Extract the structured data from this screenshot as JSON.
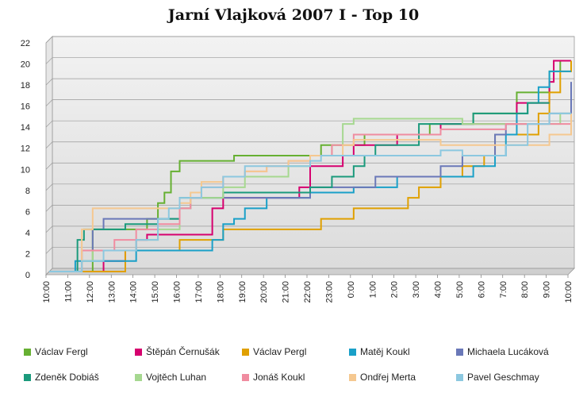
{
  "chart_data": {
    "type": "line",
    "title": "Jarní Vlajková 2007 I - Top 10",
    "xlabel": "",
    "ylabel": "",
    "x_ticks": [
      "10:00",
      "11:00",
      "12:00",
      "13:00",
      "14:00",
      "15:00",
      "16:00",
      "17:00",
      "18:00",
      "19:00",
      "20:00",
      "21:00",
      "22:00",
      "23:00",
      "0:00",
      "1:00",
      "2:00",
      "3:00",
      "4:00",
      "5:00",
      "6:00",
      "7:00",
      "8:00",
      "9:00",
      "10:00"
    ],
    "y_ticks": [
      "0",
      "2",
      "4",
      "6",
      "8",
      "10",
      "12",
      "14",
      "16",
      "18",
      "20",
      "22"
    ],
    "ylim": [
      0,
      22
    ],
    "grid": true,
    "legend_position": "bottom",
    "step": true,
    "series": [
      {
        "name": "Václav Fergl",
        "color": "#66b032",
        "points": [
          [
            0,
            0
          ],
          [
            2,
            4
          ],
          [
            3,
            4
          ],
          [
            4.5,
            5
          ],
          [
            5,
            6.5
          ],
          [
            5.3,
            7.5
          ],
          [
            5.6,
            9.5
          ],
          [
            6,
            10.5
          ],
          [
            8,
            10.5
          ],
          [
            8.5,
            11
          ],
          [
            12,
            11
          ],
          [
            12.5,
            12
          ],
          [
            14,
            12
          ],
          [
            14.5,
            13
          ],
          [
            17,
            13
          ],
          [
            17.5,
            14
          ],
          [
            19,
            14
          ],
          [
            19.5,
            15
          ],
          [
            21,
            15
          ],
          [
            21.5,
            17
          ],
          [
            22.5,
            17
          ],
          [
            23,
            19
          ],
          [
            23.5,
            20
          ],
          [
            24,
            20
          ]
        ]
      },
      {
        "name": "Štěpán Černušák",
        "color": "#d6006e",
        "points": [
          [
            0,
            0
          ],
          [
            2,
            0
          ],
          [
            2.5,
            1
          ],
          [
            3.5,
            2
          ],
          [
            4,
            3
          ],
          [
            4.5,
            3.5
          ],
          [
            7,
            3.5
          ],
          [
            7.5,
            6
          ],
          [
            8,
            7
          ],
          [
            11,
            7
          ],
          [
            11.5,
            8
          ],
          [
            12,
            10
          ],
          [
            13.5,
            11
          ],
          [
            14,
            12
          ],
          [
            15.5,
            12
          ],
          [
            16,
            13
          ],
          [
            18,
            14
          ],
          [
            21,
            14
          ],
          [
            21.5,
            16
          ],
          [
            22.5,
            16
          ],
          [
            23,
            18
          ],
          [
            23.2,
            20
          ],
          [
            24,
            20
          ]
        ]
      },
      {
        "name": "Václav Pergl",
        "color": "#e0a000",
        "points": [
          [
            0,
            0
          ],
          [
            3,
            0
          ],
          [
            3.5,
            2
          ],
          [
            5,
            2
          ],
          [
            6,
            3
          ],
          [
            8,
            4
          ],
          [
            12,
            4
          ],
          [
            12.5,
            5
          ],
          [
            13.5,
            5
          ],
          [
            14,
            6
          ],
          [
            16.5,
            7
          ],
          [
            17,
            8
          ],
          [
            18,
            9
          ],
          [
            19,
            10
          ],
          [
            20,
            11
          ],
          [
            20.5,
            13
          ],
          [
            22,
            13
          ],
          [
            22.5,
            15
          ],
          [
            23,
            17
          ],
          [
            23.5,
            19
          ],
          [
            24,
            20
          ]
        ]
      },
      {
        "name": "Matěj Koukl",
        "color": "#1aa0c8",
        "points": [
          [
            0,
            0
          ],
          [
            1,
            0
          ],
          [
            1.2,
            1
          ],
          [
            3,
            1
          ],
          [
            4,
            2
          ],
          [
            7,
            2
          ],
          [
            7.5,
            3
          ],
          [
            8,
            4.5
          ],
          [
            8.5,
            5
          ],
          [
            9,
            6
          ],
          [
            10,
            7
          ],
          [
            11.5,
            7
          ],
          [
            12,
            7.5
          ],
          [
            13,
            7.5
          ],
          [
            14,
            8
          ],
          [
            16,
            9
          ],
          [
            19,
            9
          ],
          [
            19.5,
            10
          ],
          [
            20.5,
            11
          ],
          [
            21,
            13
          ],
          [
            21.5,
            15
          ],
          [
            22,
            16
          ],
          [
            22.5,
            17.5
          ],
          [
            23,
            19
          ],
          [
            24,
            19
          ]
        ]
      },
      {
        "name": "Michaela Lucáková",
        "color": "#6a78b8",
        "points": [
          [
            0,
            0
          ],
          [
            1,
            0
          ],
          [
            1.5,
            2
          ],
          [
            2,
            4
          ],
          [
            2.5,
            5
          ],
          [
            5,
            5
          ],
          [
            5.5,
            5
          ],
          [
            6,
            6
          ],
          [
            6.5,
            7
          ],
          [
            10,
            7
          ],
          [
            11,
            7
          ],
          [
            12,
            8
          ],
          [
            14,
            8
          ],
          [
            15,
            9
          ],
          [
            17,
            9
          ],
          [
            18,
            10
          ],
          [
            19,
            11
          ],
          [
            20,
            11
          ],
          [
            20.5,
            13
          ],
          [
            21,
            14
          ],
          [
            22,
            14
          ],
          [
            23,
            15
          ],
          [
            24,
            18
          ]
        ]
      },
      {
        "name": "Zdeněk Dobiáš",
        "color": "#1b9a7c",
        "points": [
          [
            0,
            0
          ],
          [
            1,
            0
          ],
          [
            1.3,
            3
          ],
          [
            1.6,
            4
          ],
          [
            3,
            4
          ],
          [
            3.5,
            4.5
          ],
          [
            4,
            4.5
          ],
          [
            5,
            5
          ],
          [
            6,
            7
          ],
          [
            7,
            7
          ],
          [
            8,
            7.5
          ],
          [
            10,
            7.5
          ],
          [
            12,
            8
          ],
          [
            13,
            9
          ],
          [
            14,
            10
          ],
          [
            14.5,
            11
          ],
          [
            15,
            12
          ],
          [
            17,
            14
          ],
          [
            19.5,
            15
          ],
          [
            21,
            15
          ],
          [
            22,
            16
          ],
          [
            23,
            16
          ]
        ]
      },
      {
        "name": "Vojtěch Luhan",
        "color": "#a6d890",
        "points": [
          [
            0,
            0
          ],
          [
            1,
            0
          ],
          [
            1.5,
            1
          ],
          [
            2,
            2
          ],
          [
            3,
            2
          ],
          [
            4,
            3
          ],
          [
            5,
            4
          ],
          [
            6,
            6
          ],
          [
            6.5,
            7
          ],
          [
            7,
            7
          ],
          [
            8,
            8
          ],
          [
            9,
            9
          ],
          [
            10,
            9
          ],
          [
            11,
            10
          ],
          [
            12,
            11
          ],
          [
            13,
            12
          ],
          [
            13.5,
            14
          ],
          [
            14,
            14.5
          ],
          [
            18,
            14.5
          ],
          [
            19,
            14
          ],
          [
            21,
            14
          ],
          [
            23,
            14
          ],
          [
            23.5,
            15
          ],
          [
            24,
            15
          ]
        ]
      },
      {
        "name": "Jonáš Koukl",
        "color": "#f08ca0",
        "points": [
          [
            0,
            0
          ],
          [
            1,
            0
          ],
          [
            1.5,
            2
          ],
          [
            2.5,
            2
          ],
          [
            3,
            3
          ],
          [
            4,
            4
          ],
          [
            5,
            4.5
          ],
          [
            6,
            6
          ],
          [
            6.5,
            7
          ],
          [
            7,
            8
          ],
          [
            8,
            9
          ],
          [
            9,
            9.5
          ],
          [
            10,
            10
          ],
          [
            11,
            10.5
          ],
          [
            12,
            11
          ],
          [
            13,
            12
          ],
          [
            14,
            13
          ],
          [
            16,
            13
          ],
          [
            18,
            13.5
          ],
          [
            20,
            13.5
          ],
          [
            21,
            14
          ],
          [
            22.5,
            14
          ],
          [
            23,
            14
          ],
          [
            24,
            14
          ]
        ]
      },
      {
        "name": "Ondřej Merta",
        "color": "#f5c890",
        "points": [
          [
            0,
            0
          ],
          [
            1,
            0
          ],
          [
            1.5,
            4
          ],
          [
            2,
            6
          ],
          [
            5,
            6
          ],
          [
            5.5,
            6
          ],
          [
            6,
            6.5
          ],
          [
            6.5,
            7.5
          ],
          [
            7,
            8.5
          ],
          [
            8,
            9
          ],
          [
            9,
            9.5
          ],
          [
            10,
            10
          ],
          [
            11,
            10.5
          ],
          [
            12,
            11
          ],
          [
            13,
            11
          ],
          [
            13.5,
            12
          ],
          [
            14,
            12.5
          ],
          [
            16,
            12.5
          ],
          [
            18,
            12
          ],
          [
            19.5,
            12
          ],
          [
            20,
            12
          ],
          [
            21,
            12
          ],
          [
            22,
            12
          ],
          [
            23,
            13
          ],
          [
            24,
            15
          ]
        ]
      },
      {
        "name": "Pavel Geschmay",
        "color": "#8cc8e0",
        "points": [
          [
            0,
            0
          ],
          [
            1,
            0
          ],
          [
            1.5,
            1
          ],
          [
            2.5,
            2
          ],
          [
            3,
            2
          ],
          [
            4,
            3
          ],
          [
            5,
            5
          ],
          [
            5.5,
            6
          ],
          [
            6,
            7
          ],
          [
            7,
            8
          ],
          [
            8,
            9
          ],
          [
            9,
            10
          ],
          [
            10,
            10
          ],
          [
            11,
            10
          ],
          [
            12,
            10.5
          ],
          [
            12.5,
            11
          ],
          [
            14,
            11
          ],
          [
            16,
            11
          ],
          [
            18,
            11.5
          ],
          [
            19,
            11
          ],
          [
            20,
            11
          ],
          [
            21,
            12
          ],
          [
            22,
            14
          ],
          [
            23,
            15
          ],
          [
            24,
            15
          ]
        ]
      }
    ]
  },
  "legend_entries": [
    {
      "name": "Václav Fergl",
      "color": "#66b032"
    },
    {
      "name": "Štěpán Černušák",
      "color": "#d6006e"
    },
    {
      "name": "Václav Pergl",
      "color": "#e0a000"
    },
    {
      "name": "Matěj Koukl",
      "color": "#1aa0c8"
    },
    {
      "name": "Michaela Lucáková",
      "color": "#6a78b8"
    },
    {
      "name": "Zdeněk Dobiáš",
      "color": "#1b9a7c"
    },
    {
      "name": "Vojtěch Luhan",
      "color": "#a6d890"
    },
    {
      "name": "Jonáš Koukl",
      "color": "#f08ca0"
    },
    {
      "name": "Ondřej Merta",
      "color": "#f5c890"
    },
    {
      "name": "Pavel Geschmay",
      "color": "#8cc8e0"
    }
  ]
}
